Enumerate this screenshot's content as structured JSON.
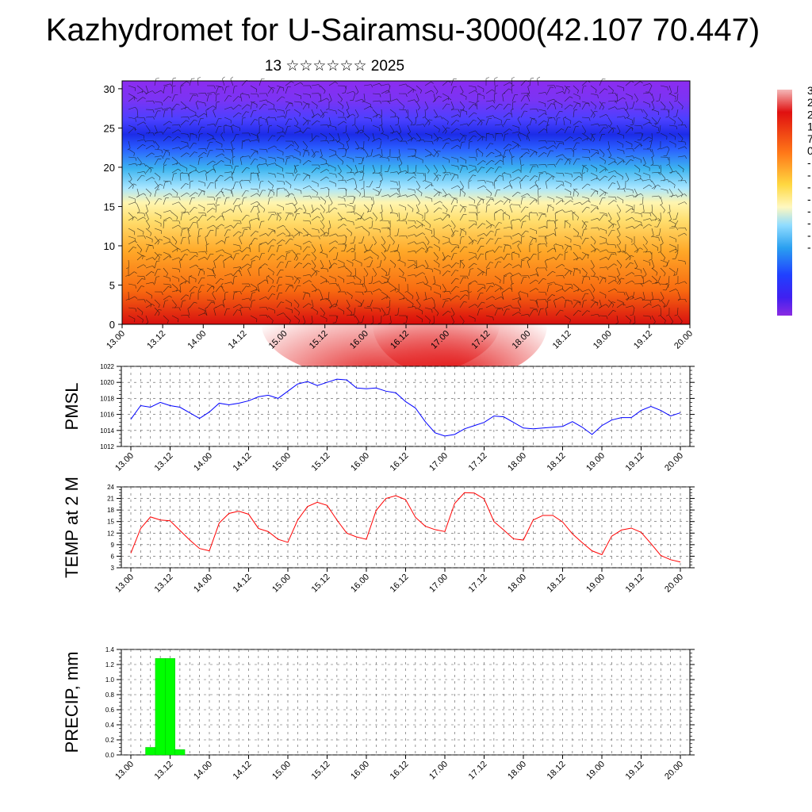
{
  "title": "Kazhydromet for U-Sairamsu-3000(42.107 70.447)",
  "subtitle": "13 ☆☆☆☆☆☆ 2025",
  "time_ticks": [
    "13.00",
    "13.12",
    "14.00",
    "14.12",
    "15.00",
    "15.12",
    "16.00",
    "16.12",
    "17.00",
    "17.12",
    "18.00",
    "18.12",
    "19.00",
    "19.12",
    "20.00"
  ],
  "chart_data": [
    {
      "type": "heatmap",
      "name_hint": "cross-section",
      "y_ticks": [
        0,
        5,
        10,
        15,
        20,
        25,
        30
      ],
      "ylim": [
        0,
        31
      ],
      "xlim": [
        0,
        168
      ],
      "colorbar_labels": [
        "3",
        "2",
        "2",
        "1",
        "7",
        "0",
        "-",
        "-",
        "-",
        "-",
        "-",
        "-",
        "-",
        "-"
      ],
      "colors": {
        "top": "#8a2be2",
        "mid_blue": "#1e3cff",
        "cyan": "#3fc0f0",
        "yellow": "#fff27a",
        "orange": "#ffa020",
        "red": "#e81010"
      }
    },
    {
      "type": "line",
      "ylabel": "PMSL",
      "y_ticks": [
        1012,
        1014,
        1016,
        1018,
        1020,
        1022
      ],
      "ylim": [
        1012,
        1022
      ],
      "x_hours": [
        0,
        3,
        6,
        9,
        12,
        15,
        18,
        21,
        24,
        27,
        30,
        33,
        36,
        39,
        42,
        45,
        48,
        51,
        54,
        57,
        60,
        63,
        66,
        69,
        72,
        75,
        78,
        81,
        84,
        87,
        90,
        93,
        96,
        99,
        102,
        105,
        108,
        111,
        114,
        117,
        120,
        123,
        126,
        129,
        132,
        135,
        138,
        141,
        144,
        147,
        150,
        153,
        156,
        159,
        162,
        165,
        168
      ],
      "values": [
        1015.4,
        1017.1,
        1016.9,
        1017.5,
        1017.1,
        1016.9,
        1016.2,
        1015.5,
        1016.3,
        1017.4,
        1017.2,
        1017.4,
        1017.7,
        1018.2,
        1018.4,
        1018.0,
        1018.9,
        1019.8,
        1020.1,
        1019.6,
        1020.0,
        1020.4,
        1020.3,
        1019.3,
        1019.2,
        1019.3,
        1018.9,
        1018.7,
        1017.6,
        1016.8,
        1015.1,
        1013.7,
        1013.3,
        1013.5,
        1014.2,
        1014.6,
        1015.0,
        1015.8,
        1015.7,
        1015.0,
        1014.3,
        1014.2,
        1014.3,
        1014.4,
        1014.5,
        1015.1,
        1014.4,
        1013.5,
        1014.6,
        1015.3,
        1015.6,
        1015.6,
        1016.5,
        1017.0,
        1016.5,
        1015.8,
        1016.2
      ],
      "color": "#0000ff"
    },
    {
      "type": "line",
      "ylabel": "TEMP at 2 M",
      "y_ticks": [
        3,
        6,
        9,
        12,
        15,
        18,
        21,
        24
      ],
      "ylim": [
        3,
        24
      ],
      "x_hours": [
        0,
        3,
        6,
        9,
        12,
        15,
        18,
        21,
        24,
        27,
        30,
        33,
        36,
        39,
        42,
        45,
        48,
        51,
        54,
        57,
        60,
        63,
        66,
        69,
        72,
        75,
        78,
        81,
        84,
        87,
        90,
        93,
        96,
        99,
        102,
        105,
        108,
        111,
        114,
        117,
        120,
        123,
        126,
        129,
        132,
        135,
        138,
        141,
        144,
        147,
        150,
        153,
        156,
        159,
        162,
        165,
        168
      ],
      "values": [
        6.8,
        13.2,
        16.2,
        15.4,
        15.2,
        12.7,
        10.2,
        8.0,
        7.4,
        14.6,
        17.1,
        17.7,
        16.9,
        13.2,
        12.4,
        10.4,
        9.6,
        15.4,
        18.9,
        20.0,
        19.2,
        15.4,
        12.0,
        11.0,
        10.4,
        17.9,
        21.0,
        21.7,
        20.7,
        16.1,
        13.8,
        12.9,
        12.4,
        19.7,
        22.5,
        22.4,
        20.9,
        15.0,
        12.8,
        10.5,
        10.2,
        15.4,
        16.6,
        16.6,
        14.9,
        11.8,
        9.5,
        7.4,
        6.4,
        11.2,
        12.8,
        13.3,
        12.2,
        9.3,
        6.2,
        5.1,
        4.5
      ],
      "color": "#ff0000"
    },
    {
      "type": "bar",
      "ylabel": "PRECIP, mm",
      "y_ticks": [
        "0.0",
        "0.2",
        "0.4",
        "0.6",
        "0.8",
        "1.0",
        "1.2",
        "1.4"
      ],
      "ylim": [
        0,
        1.4
      ],
      "x_hours": [
        6,
        9,
        12,
        15
      ],
      "values": [
        0.1,
        1.28,
        1.28,
        0.07
      ],
      "color": "#00ff00"
    }
  ]
}
